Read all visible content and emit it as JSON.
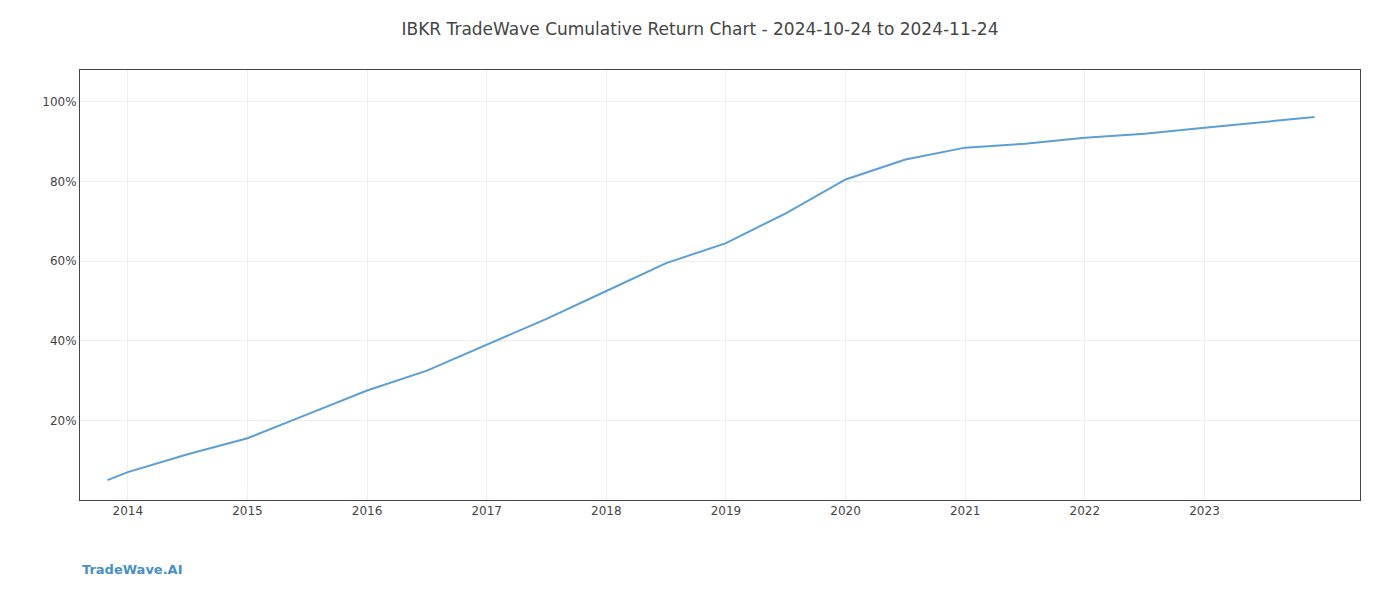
{
  "chart_data": {
    "type": "line",
    "title": "IBKR TradeWave Cumulative Return Chart - 2024-10-24 to 2024-11-24",
    "annotations": [
      "TradeWave.AI"
    ],
    "x": [
      2013.83,
      2014.0,
      2014.5,
      2015.0,
      2015.5,
      2016.0,
      2016.5,
      2017.0,
      2017.5,
      2018.0,
      2018.5,
      2019.0,
      2019.5,
      2020.0,
      2020.5,
      2021.0,
      2021.5,
      2022.0,
      2022.5,
      2023.0,
      2023.5,
      2023.92
    ],
    "values": [
      0.05,
      0.07,
      0.115,
      0.155,
      0.215,
      0.275,
      0.325,
      0.39,
      0.455,
      0.525,
      0.595,
      0.645,
      0.72,
      0.805,
      0.855,
      0.885,
      0.895,
      0.91,
      0.92,
      0.935,
      0.95,
      0.962
    ],
    "color": "#5b9fd4",
    "xlim": [
      2013.6,
      2024.3
    ],
    "ylim": [
      0.0,
      1.08
    ],
    "xticks": [
      2014,
      2015,
      2016,
      2017,
      2018,
      2019,
      2020,
      2021,
      2022,
      2023
    ],
    "yticks": [
      {
        "value": 0.2,
        "label": "20%"
      },
      {
        "value": 0.4,
        "label": "40%"
      },
      {
        "value": 0.6,
        "label": "60%"
      },
      {
        "value": 0.8,
        "label": "80%"
      },
      {
        "value": 1.0,
        "label": "100%"
      }
    ],
    "grid": true
  }
}
